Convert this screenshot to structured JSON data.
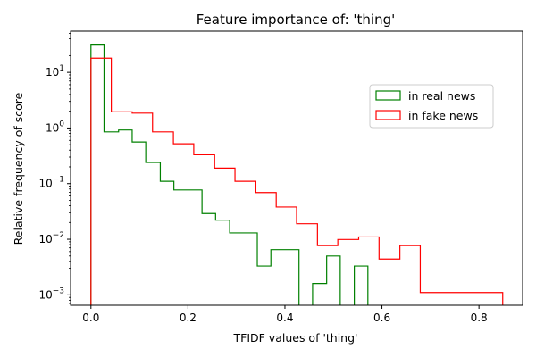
{
  "chart_data": {
    "type": "histogram-step",
    "title": "Feature importance of: 'thing'",
    "xlabel": "TFIDF values of 'thing'",
    "ylabel": "Relative frequency of score",
    "xlim": [
      -0.042,
      0.89
    ],
    "ylim": [
      0.00065,
      55
    ],
    "yscale": "log",
    "x_ticks": [
      0.0,
      0.2,
      0.4,
      0.6,
      0.8
    ],
    "x_tick_labels": [
      "0.0",
      "0.2",
      "0.4",
      "0.6",
      "0.8"
    ],
    "y_ticks": [
      0.001,
      0.01,
      0.1,
      1,
      10
    ],
    "y_tick_labels": [
      {
        "base": "10",
        "exp": "−3"
      },
      {
        "base": "10",
        "exp": "−2"
      },
      {
        "base": "10",
        "exp": "−1"
      },
      {
        "base": "10",
        "exp": "0"
      },
      {
        "base": "10",
        "exp": "1"
      }
    ],
    "legend_position": "right, upper-middle",
    "series": [
      {
        "name": "in real news",
        "color": "#008000",
        "bins": [
          {
            "x0": 0.0,
            "x1": 0.027,
            "y": 32
          },
          {
            "x0": 0.027,
            "x1": 0.057,
            "y": 0.85
          },
          {
            "x0": 0.057,
            "x1": 0.085,
            "y": 0.92
          },
          {
            "x0": 0.085,
            "x1": 0.113,
            "y": 0.56
          },
          {
            "x0": 0.113,
            "x1": 0.143,
            "y": 0.24
          },
          {
            "x0": 0.143,
            "x1": 0.171,
            "y": 0.11
          },
          {
            "x0": 0.171,
            "x1": 0.229,
            "y": 0.077
          },
          {
            "x0": 0.229,
            "x1": 0.257,
            "y": 0.029
          },
          {
            "x0": 0.257,
            "x1": 0.286,
            "y": 0.022
          },
          {
            "x0": 0.286,
            "x1": 0.343,
            "y": 0.013
          },
          {
            "x0": 0.343,
            "x1": 0.371,
            "y": 0.0033
          },
          {
            "x0": 0.371,
            "x1": 0.429,
            "y": 0.0065
          },
          {
            "x0": 0.429,
            "x1": 0.457,
            "y": 0
          },
          {
            "x0": 0.457,
            "x1": 0.486,
            "y": 0.0016
          },
          {
            "x0": 0.486,
            "x1": 0.514,
            "y": 0.005
          },
          {
            "x0": 0.514,
            "x1": 0.543,
            "y": 0
          },
          {
            "x0": 0.543,
            "x1": 0.571,
            "y": 0.0033
          }
        ]
      },
      {
        "name": "in fake news",
        "color": "#ff0000",
        "bins": [
          {
            "x0": 0.0,
            "x1": 0.042,
            "y": 18
          },
          {
            "x0": 0.042,
            "x1": 0.085,
            "y": 1.95
          },
          {
            "x0": 0.085,
            "x1": 0.127,
            "y": 1.85
          },
          {
            "x0": 0.127,
            "x1": 0.17,
            "y": 0.85
          },
          {
            "x0": 0.17,
            "x1": 0.212,
            "y": 0.52
          },
          {
            "x0": 0.212,
            "x1": 0.255,
            "y": 0.33
          },
          {
            "x0": 0.255,
            "x1": 0.297,
            "y": 0.19
          },
          {
            "x0": 0.297,
            "x1": 0.34,
            "y": 0.11
          },
          {
            "x0": 0.34,
            "x1": 0.382,
            "y": 0.069
          },
          {
            "x0": 0.382,
            "x1": 0.424,
            "y": 0.038
          },
          {
            "x0": 0.424,
            "x1": 0.467,
            "y": 0.019
          },
          {
            "x0": 0.467,
            "x1": 0.509,
            "y": 0.0077
          },
          {
            "x0": 0.509,
            "x1": 0.552,
            "y": 0.0099
          },
          {
            "x0": 0.552,
            "x1": 0.594,
            "y": 0.011
          },
          {
            "x0": 0.594,
            "x1": 0.637,
            "y": 0.0044
          },
          {
            "x0": 0.637,
            "x1": 0.679,
            "y": 0.0077
          },
          {
            "x0": 0.679,
            "x1": 0.849,
            "y": 0.0011
          }
        ]
      }
    ]
  }
}
